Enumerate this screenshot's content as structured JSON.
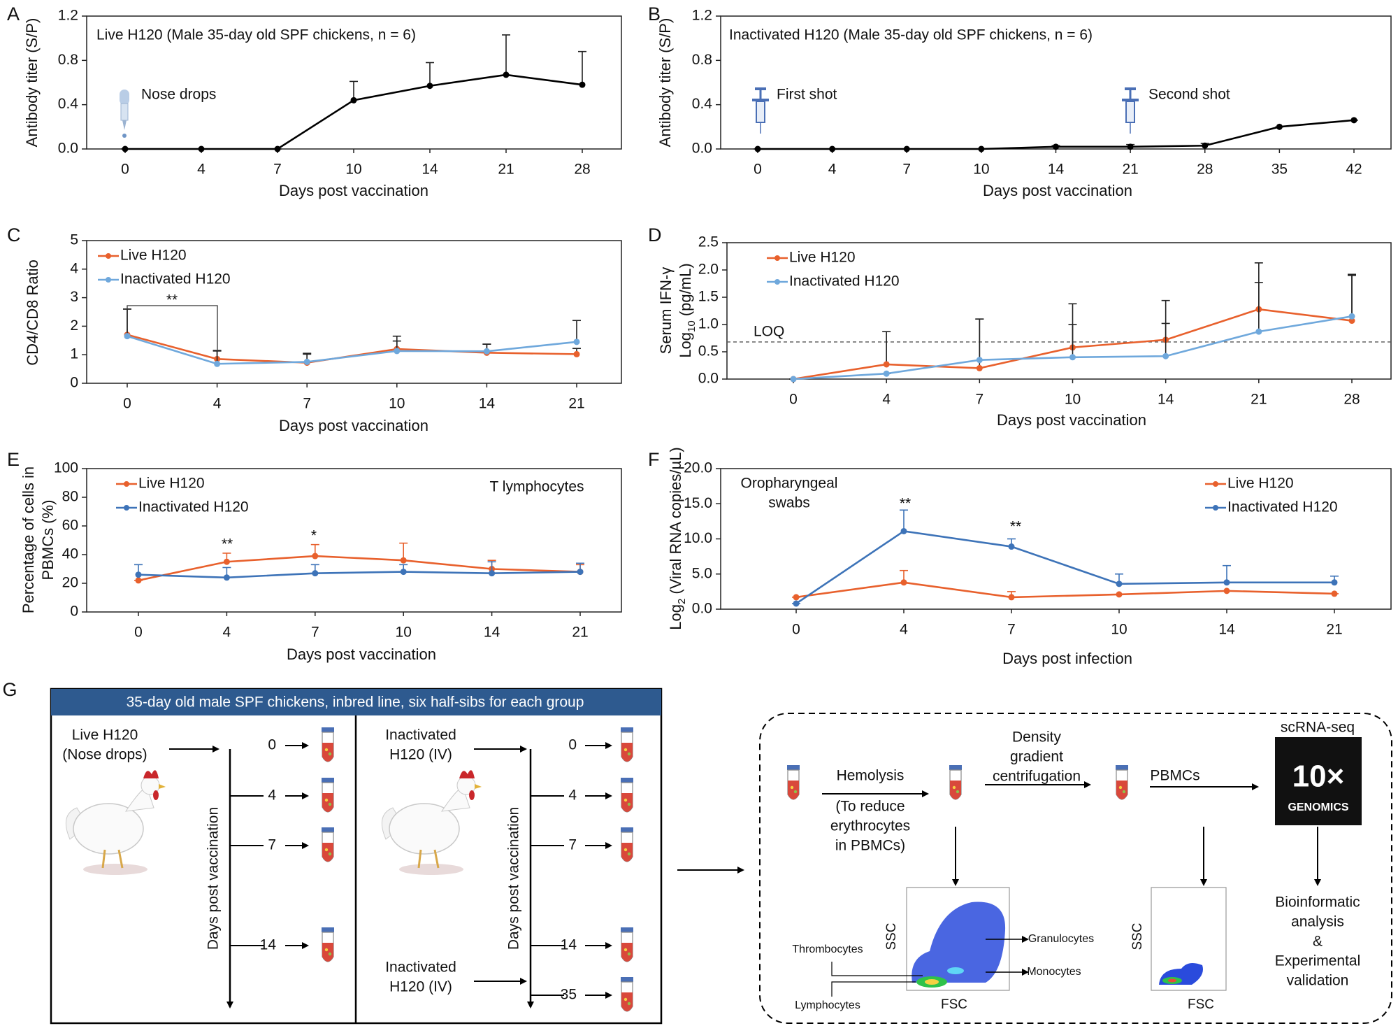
{
  "chart_data": [
    {
      "panel": "A",
      "type": "line",
      "title": "Live H120 (Male 35-day old SPF chickens, n = 6)",
      "annotations": [
        "Nose drops"
      ],
      "categories": [
        "0",
        "4",
        "7",
        "10",
        "14",
        "21",
        "28"
      ],
      "values": [
        0,
        0,
        0,
        0.44,
        0.57,
        0.67,
        0.58
      ],
      "errors": [
        0,
        0,
        0,
        0.17,
        0.21,
        0.36,
        0.3
      ],
      "color": "#000000",
      "ylim": [
        0,
        1.2
      ],
      "yticks": [
        {
          "value": 0,
          "label": "0.0"
        },
        0.4,
        0.8,
        1.2
      ],
      "xlabel": "Days post vaccination",
      "ylabel": "Antibody titer (S/P)"
    },
    {
      "panel": "B",
      "type": "line",
      "title": "Inactivated H120  (Male 35-day old SPF chickens, n = 6)",
      "annotations": [
        "First shot",
        "Second shot"
      ],
      "categories": [
        "0",
        "4",
        "7",
        "10",
        "14",
        "21",
        "28",
        "35",
        "42"
      ],
      "values": [
        0,
        0,
        0,
        0,
        0.02,
        0.02,
        0.03,
        0.2,
        0.26
      ],
      "errors": [
        0,
        0,
        0,
        0,
        0.01,
        0.02,
        0.02,
        0,
        0
      ],
      "color": "#000000",
      "ylim": [
        0,
        1.2
      ],
      "yticks": [
        {
          "value": 0,
          "label": "0.0"
        },
        0.4,
        0.8,
        1.2
      ],
      "xlabel": "Days post vaccination",
      "ylabel": "Antibody titer (S/P)"
    },
    {
      "panel": "C",
      "type": "line",
      "annotations": [
        "**"
      ],
      "legend": "upper left",
      "categories": [
        "0",
        "4",
        "7",
        "10",
        "14",
        "21"
      ],
      "series": [
        {
          "name": "Live H120",
          "color": "#e8602c",
          "values": [
            1.7,
            0.85,
            0.72,
            1.2,
            1.07,
            1.02
          ],
          "errors": [
            0.9,
            0.3,
            0.3,
            0.45,
            0.3,
            0.2
          ]
        },
        {
          "name": "Inactivated H120",
          "color": "#6fa8dc",
          "values": [
            1.65,
            0.68,
            0.75,
            1.13,
            1.12,
            1.45
          ],
          "errors": [
            0.95,
            0.45,
            0.3,
            0.35,
            0.25,
            0.75
          ]
        }
      ],
      "ylim": [
        0,
        5
      ],
      "yticks": [
        0,
        1,
        2,
        3,
        4,
        5
      ],
      "xlabel": "Days post vaccination",
      "ylabel": "CD4/CD8 Ratio"
    },
    {
      "panel": "D",
      "type": "line",
      "legend": "upper left",
      "loq": {
        "value": 0.68,
        "label": "LOQ"
      },
      "categories": [
        "0",
        "4",
        "7",
        "10",
        "14",
        "21",
        "28"
      ],
      "series": [
        {
          "name": "Live H120",
          "color": "#e8602c",
          "values": [
            0,
            0.27,
            0.2,
            0.58,
            0.72,
            1.28,
            1.07
          ],
          "errors": [
            0,
            0.6,
            0.9,
            0.8,
            0.72,
            0.85,
            0.85
          ]
        },
        {
          "name": "Inactivated H120",
          "color": "#6fa8dc",
          "values": [
            0,
            0.1,
            0.35,
            0.4,
            0.42,
            0.87,
            1.15
          ],
          "errors": [
            0,
            0,
            0.75,
            0.6,
            0.6,
            0.9,
            0.75
          ]
        }
      ],
      "ylim": [
        0,
        2.5
      ],
      "yticks": [
        {
          "value": 0,
          "label": "0.0"
        },
        0.5,
        {
          "value": 1,
          "label": "1.0"
        },
        1.5,
        {
          "value": 2,
          "label": "2.0"
        },
        2.5
      ],
      "xlabel": "Days post vaccination",
      "ylabel": [
        "Serum IFN-γ",
        {
          "base": "Log",
          "sub": "10",
          "rest": " (pg/mL)"
        }
      ]
    },
    {
      "panel": "E",
      "type": "line",
      "legend": "upper left",
      "annotations": [
        "T lymphocytes",
        "**",
        "*"
      ],
      "categories": [
        "0",
        "4",
        "7",
        "10",
        "14",
        "21"
      ],
      "series": [
        {
          "name": "Live H120",
          "color": "#e8602c",
          "values": [
            22,
            35,
            39,
            36,
            30,
            28
          ],
          "errors": [
            0,
            6,
            8,
            12,
            6,
            5
          ]
        },
        {
          "name": "Inactivated H120",
          "color": "#3d73b8",
          "values": [
            26,
            24,
            27,
            28,
            27,
            28
          ],
          "errors": [
            7,
            7,
            6,
            5,
            8,
            6
          ]
        }
      ],
      "ylim": [
        0,
        100
      ],
      "yticks": [
        0,
        20,
        40,
        60,
        80,
        100
      ],
      "xlabel": "Days post vaccination",
      "ylabel": [
        "Percentage of cells in",
        "PBMCs (%)"
      ]
    },
    {
      "panel": "F",
      "type": "line",
      "legend": "upper right",
      "annotations": [
        "Oropharyngeal",
        "swabs",
        "**",
        "**"
      ],
      "categories": [
        "0",
        "4",
        "7",
        "10",
        "14",
        "21"
      ],
      "series": [
        {
          "name": "Live H120",
          "color": "#e8602c",
          "values": [
            1.7,
            3.8,
            1.7,
            2.1,
            2.6,
            2.2
          ],
          "errors": [
            0,
            1.7,
            0.8,
            0,
            0,
            0
          ]
        },
        {
          "name": "Inactivated H120",
          "color": "#3d73b8",
          "values": [
            0.8,
            11.1,
            8.9,
            3.6,
            3.8,
            3.8
          ],
          "errors": [
            0,
            3,
            1.1,
            1.4,
            2.4,
            0.9
          ]
        }
      ],
      "ylim": [
        0,
        20
      ],
      "yticks": [
        {
          "value": 0,
          "label": "0.0"
        },
        {
          "value": 5,
          "label": "5.0"
        },
        {
          "value": 10,
          "label": "10.0"
        },
        {
          "value": 15,
          "label": "15.0"
        },
        {
          "value": 20,
          "label": "20.0"
        }
      ],
      "xlabel": "Days post infection",
      "ylabel": {
        "base": "Log",
        "sub": "2",
        "rest": " (Viral RNA copies/µL)"
      }
    }
  ],
  "diagram": {
    "panel": "G",
    "header": "35-day old male SPF chickens, inbred line, six half-sibs for each group",
    "groups": [
      {
        "label": [
          "Live H120",
          "(Nose drops)"
        ],
        "timepoints": [
          "0",
          "4",
          "7",
          "14"
        ]
      },
      {
        "label": [
          "Inactivated",
          "H120 (IV)"
        ],
        "booster_label": [
          "Inactivated",
          "H120 (IV)"
        ],
        "timepoints": [
          "0",
          "4",
          "7",
          "14",
          "35"
        ]
      }
    ],
    "axis_label": "Days post vaccination",
    "steps": {
      "hemolysis": "Hemolysis",
      "hemolysis_note": [
        "(To reduce",
        "erythrocytes",
        "in PBMCs)"
      ],
      "centrifugation": [
        "Density",
        "gradient",
        "centrifugation"
      ],
      "pbmcs": "PBMCs",
      "sequencing": "scRNA-seq",
      "logo": [
        "10×",
        "GENOMICS"
      ],
      "analysis": [
        "Bioinformatic",
        "analysis",
        "&",
        "Experimental",
        "validation"
      ]
    },
    "flow_plots": [
      {
        "x_label": "FSC",
        "y_label": "SSC",
        "gates": [
          "Granulocytes",
          "Monocytes",
          "Thrombocytes",
          "Lymphocytes"
        ]
      },
      {
        "x_label": "FSC",
        "y_label": "SSC"
      }
    ]
  }
}
